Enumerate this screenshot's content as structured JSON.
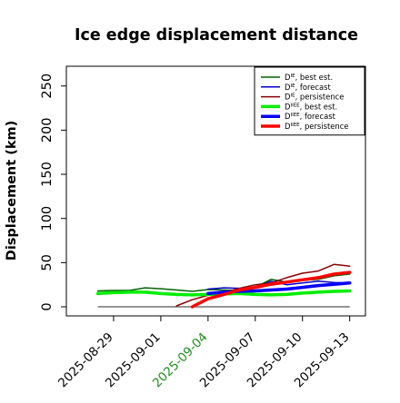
{
  "chart_data": {
    "type": "line",
    "title": "Ice edge displacement distance",
    "xlabel": "",
    "ylabel": "Displacement (km)",
    "ylim": [
      0,
      260
    ],
    "xlim": [
      "2025-08-26",
      "2025-09-14"
    ],
    "yticks": [
      0,
      50,
      100,
      150,
      200,
      250
    ],
    "xticks": [
      "2025-08-29",
      "2025-09-01",
      "2025-09-04",
      "2025-09-07",
      "2025-09-10",
      "2025-09-13"
    ],
    "highlight_tick": "2025-09-04",
    "highlight_color": "#228B22",
    "grid": false,
    "legend_position": "top-right",
    "reference_line": {
      "y": 0,
      "x": [
        "2025-08-28",
        "2025-09-13"
      ],
      "color": "#555555"
    },
    "series": [
      {
        "name": "D^IE, best est.",
        "base": "D",
        "sup": "IE",
        "label": ", best est.",
        "color": "#006400",
        "width": 1.5,
        "points": [
          [
            "2025-08-28",
            18
          ],
          [
            "2025-08-29",
            18.5
          ],
          [
            "2025-08-30",
            18.5
          ],
          [
            "2025-08-31",
            21.5
          ],
          [
            "2025-09-01",
            20.5
          ],
          [
            "2025-09-02",
            19
          ],
          [
            "2025-09-03",
            17.5
          ],
          [
            "2025-09-04",
            19.5
          ],
          [
            "2025-09-05",
            19
          ],
          [
            "2025-09-06",
            18.5
          ],
          [
            "2025-09-07",
            22
          ],
          [
            "2025-09-08",
            31
          ],
          [
            "2025-09-09",
            28
          ],
          [
            "2025-09-10",
            30
          ],
          [
            "2025-09-11",
            31
          ],
          [
            "2025-09-12",
            35
          ],
          [
            "2025-09-13",
            37
          ]
        ]
      },
      {
        "name": "D^IE, forecast",
        "base": "D",
        "sup": "IE",
        "label": ", forecast",
        "color": "#0000CD",
        "width": 1.5,
        "points": [
          [
            "2025-09-04",
            20
          ],
          [
            "2025-09-05",
            21.5
          ],
          [
            "2025-09-06",
            21
          ],
          [
            "2025-09-07",
            22
          ],
          [
            "2025-09-08",
            29
          ],
          [
            "2025-09-09",
            25
          ],
          [
            "2025-09-10",
            27
          ],
          [
            "2025-09-11",
            29
          ],
          [
            "2025-09-12",
            27.5
          ],
          [
            "2025-09-13",
            27
          ]
        ]
      },
      {
        "name": "D^IE, persistence",
        "base": "D",
        "sup": "IE",
        "label": ", persistence",
        "color": "#8B0000",
        "width": 1.5,
        "points": [
          [
            "2025-09-02",
            1
          ],
          [
            "2025-09-03",
            8
          ],
          [
            "2025-09-04",
            13
          ],
          [
            "2025-09-05",
            16
          ],
          [
            "2025-09-06",
            21
          ],
          [
            "2025-09-07",
            25
          ],
          [
            "2025-09-08",
            27
          ],
          [
            "2025-09-09",
            33
          ],
          [
            "2025-09-10",
            38
          ],
          [
            "2025-09-11",
            40.5
          ],
          [
            "2025-09-12",
            48
          ],
          [
            "2025-09-13",
            46
          ]
        ]
      },
      {
        "name": "D^IIEE, best est.",
        "base": "D",
        "sup": "IIEE",
        "label": ", best est.",
        "color": "#00EE00",
        "width": 3.5,
        "points": [
          [
            "2025-08-28",
            15
          ],
          [
            "2025-08-29",
            16
          ],
          [
            "2025-08-30",
            16.5
          ],
          [
            "2025-08-31",
            16.5
          ],
          [
            "2025-09-01",
            15
          ],
          [
            "2025-09-02",
            14
          ],
          [
            "2025-09-03",
            13.5
          ],
          [
            "2025-09-04",
            14
          ],
          [
            "2025-09-05",
            14.5
          ],
          [
            "2025-09-06",
            15
          ],
          [
            "2025-09-07",
            14
          ],
          [
            "2025-09-08",
            13.5
          ],
          [
            "2025-09-09",
            14
          ],
          [
            "2025-09-10",
            15.5
          ],
          [
            "2025-09-11",
            16.5
          ],
          [
            "2025-09-12",
            17.5
          ],
          [
            "2025-09-13",
            18
          ]
        ]
      },
      {
        "name": "D^IIEE, forecast",
        "base": "D",
        "sup": "IIEE",
        "label": ", forecast",
        "color": "#0000FF",
        "width": 3.5,
        "points": [
          [
            "2025-09-04",
            15
          ],
          [
            "2025-09-05",
            16.5
          ],
          [
            "2025-09-06",
            17.5
          ],
          [
            "2025-09-07",
            18
          ],
          [
            "2025-09-08",
            19
          ],
          [
            "2025-09-09",
            20
          ],
          [
            "2025-09-10",
            22
          ],
          [
            "2025-09-11",
            24
          ],
          [
            "2025-09-12",
            25.5
          ],
          [
            "2025-09-13",
            27
          ]
        ]
      },
      {
        "name": "D^IIEE, persistence",
        "base": "D",
        "sup": "IIEE",
        "label": ", persistence",
        "color": "#FF0000",
        "width": 3.5,
        "points": [
          [
            "2025-09-03",
            0
          ],
          [
            "2025-09-04",
            9
          ],
          [
            "2025-09-05",
            14
          ],
          [
            "2025-09-06",
            19
          ],
          [
            "2025-09-07",
            22
          ],
          [
            "2025-09-08",
            25.5
          ],
          [
            "2025-09-09",
            28
          ],
          [
            "2025-09-10",
            30.5
          ],
          [
            "2025-09-11",
            33
          ],
          [
            "2025-09-12",
            37
          ],
          [
            "2025-09-13",
            39
          ]
        ]
      }
    ]
  }
}
